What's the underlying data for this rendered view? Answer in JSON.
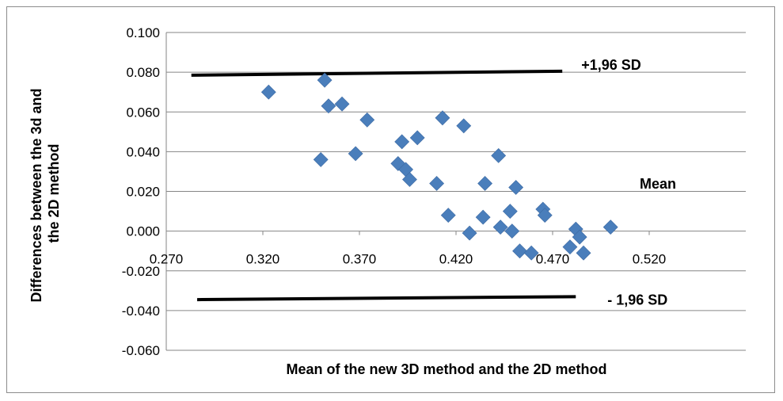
{
  "chart_data": {
    "type": "scatter",
    "title": "",
    "xlabel": "Mean of the new 3D method and the 2D method",
    "ylabel_lines": [
      "Differences between  the 3d  and",
      "the 2D method"
    ],
    "xlim": [
      0.27,
      0.57
    ],
    "ylim": [
      -0.06,
      0.1
    ],
    "x_ticks": [
      "0.270",
      "0.320",
      "0.370",
      "0.420",
      "0.470",
      "0.520"
    ],
    "y_ticks": [
      "0.100",
      "0.080",
      "0.060",
      "0.040",
      "0.020",
      "0.000",
      "-0.020",
      "-0.040",
      "-0.060"
    ],
    "grid": "horizontal",
    "marker": "diamond",
    "marker_color": "#4a7ebb",
    "series": [
      {
        "points": [
          {
            "x": 0.323,
            "y": 0.07
          },
          {
            "x": 0.352,
            "y": 0.076
          },
          {
            "x": 0.354,
            "y": 0.063
          },
          {
            "x": 0.361,
            "y": 0.064
          },
          {
            "x": 0.35,
            "y": 0.036
          },
          {
            "x": 0.368,
            "y": 0.039
          },
          {
            "x": 0.374,
            "y": 0.056
          },
          {
            "x": 0.39,
            "y": 0.034
          },
          {
            "x": 0.392,
            "y": 0.045
          },
          {
            "x": 0.394,
            "y": 0.031
          },
          {
            "x": 0.396,
            "y": 0.026
          },
          {
            "x": 0.4,
            "y": 0.047
          },
          {
            "x": 0.41,
            "y": 0.024
          },
          {
            "x": 0.413,
            "y": 0.057
          },
          {
            "x": 0.416,
            "y": 0.008
          },
          {
            "x": 0.424,
            "y": 0.053
          },
          {
            "x": 0.427,
            "y": -0.001
          },
          {
            "x": 0.434,
            "y": 0.007
          },
          {
            "x": 0.435,
            "y": 0.024
          },
          {
            "x": 0.442,
            "y": 0.038
          },
          {
            "x": 0.443,
            "y": 0.002
          },
          {
            "x": 0.448,
            "y": 0.01
          },
          {
            "x": 0.449,
            "y": 0.0
          },
          {
            "x": 0.451,
            "y": 0.022
          },
          {
            "x": 0.453,
            "y": -0.01
          },
          {
            "x": 0.459,
            "y": -0.011
          },
          {
            "x": 0.465,
            "y": 0.011
          },
          {
            "x": 0.466,
            "y": 0.008
          },
          {
            "x": 0.479,
            "y": -0.008
          },
          {
            "x": 0.482,
            "y": 0.001
          },
          {
            "x": 0.484,
            "y": -0.003
          },
          {
            "x": 0.486,
            "y": -0.011
          },
          {
            "x": 0.5,
            "y": 0.002
          }
        ]
      }
    ],
    "reference_lines": [
      {
        "label": "+1,96 SD",
        "x": [
          0.283,
          0.475
        ],
        "y": [
          0.0785,
          0.0805
        ]
      },
      {
        "label": "- 1,96 SD",
        "x": [
          0.286,
          0.482
        ],
        "y": [
          -0.0345,
          -0.033
        ]
      }
    ],
    "mean_label": "Mean",
    "mean_label_y": 0.025
  }
}
